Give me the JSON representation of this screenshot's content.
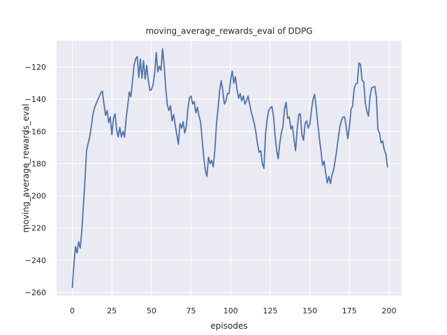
{
  "chart_data": {
    "type": "line",
    "title": "moving_average_rewards_eval of DDPG",
    "xlabel": "episodes",
    "ylabel": "moving_average_rewards_eval",
    "x_start": 0,
    "x_step": 1,
    "values": [
      -257,
      -243,
      -231.5,
      -235.5,
      -228.5,
      -232.5,
      -222,
      -206,
      -190.5,
      -172,
      -167.5,
      -163.5,
      -157,
      -149.5,
      -145.5,
      -143,
      -140.5,
      -138.5,
      -136,
      -135,
      -143,
      -150,
      -147,
      -154.5,
      -151,
      -162,
      -152,
      -149,
      -159,
      -163.5,
      -157.5,
      -163.5,
      -160,
      -163.5,
      -152,
      -144,
      -135.5,
      -138.5,
      -129,
      -119,
      -115,
      -113.5,
      -126.5,
      -115,
      -127,
      -116,
      -127.5,
      -119,
      -128.5,
      -134.5,
      -134,
      -131,
      -124,
      -111,
      -123,
      -119.5,
      -122,
      -108.7,
      -119,
      -133,
      -143.5,
      -147,
      -144,
      -153.5,
      -149.5,
      -156,
      -162,
      -168,
      -155,
      -158,
      -154,
      -161,
      -157,
      -146,
      -139,
      -138,
      -143,
      -141.5,
      -148.5,
      -145,
      -150.5,
      -154,
      -165,
      -176,
      -184,
      -188,
      -176,
      -180,
      -178,
      -182,
      -172,
      -156,
      -146,
      -135,
      -128.5,
      -134.5,
      -143,
      -141,
      -136.5,
      -136.5,
      -128,
      -122.5,
      -130,
      -126,
      -134,
      -139.5,
      -136.5,
      -141,
      -138,
      -143,
      -141,
      -138,
      -143,
      -148,
      -151.5,
      -155.5,
      -161,
      -168,
      -173,
      -172,
      -180,
      -183,
      -162,
      -153,
      -147,
      -145.5,
      -144.5,
      -150,
      -162,
      -171.5,
      -177,
      -167.5,
      -161,
      -157,
      -146,
      -142,
      -152,
      -151,
      -158.5,
      -156.5,
      -165,
      -172,
      -158.5,
      -149.5,
      -149,
      -162,
      -165.5,
      -155,
      -153.5,
      -158,
      -155.5,
      -147,
      -140,
      -137,
      -145,
      -155,
      -164,
      -172,
      -181,
      -178.5,
      -186,
      -192,
      -188,
      -192.5,
      -187,
      -184,
      -178,
      -171.5,
      -163.5,
      -157,
      -153,
      -151,
      -151,
      -157.5,
      -164.5,
      -157,
      -146.5,
      -144,
      -133.5,
      -130.5,
      -130,
      -117.5,
      -118.5,
      -128.5,
      -129,
      -142,
      -147.5,
      -150.5,
      -138.5,
      -133,
      -132.5,
      -132,
      -138.5,
      -159,
      -161,
      -167,
      -166,
      -171.5,
      -174,
      -182
    ],
    "xticks": [
      0,
      25,
      50,
      75,
      100,
      125,
      150,
      175,
      200
    ],
    "yticks": [
      -260,
      -240,
      -220,
      -200,
      -180,
      -160,
      -140,
      -120
    ],
    "xtick_labels": [
      "0",
      "25",
      "50",
      "75",
      "100",
      "125",
      "150",
      "175",
      "200"
    ],
    "ytick_labels": [
      "−260",
      "−240",
      "−220",
      "−200",
      "−180",
      "−160",
      "−140",
      "−120"
    ],
    "xlim": [
      -9.92,
      207.94
    ],
    "ylim": [
      -261.95,
      -103.74
    ],
    "grid": true,
    "legend_position": "none",
    "colors": {
      "line": "#4C72B0",
      "plot_background": "#EAEAF2",
      "gridline": "#FFFFFF",
      "figure_background": "#FFFFFF",
      "text": "#262626"
    }
  }
}
